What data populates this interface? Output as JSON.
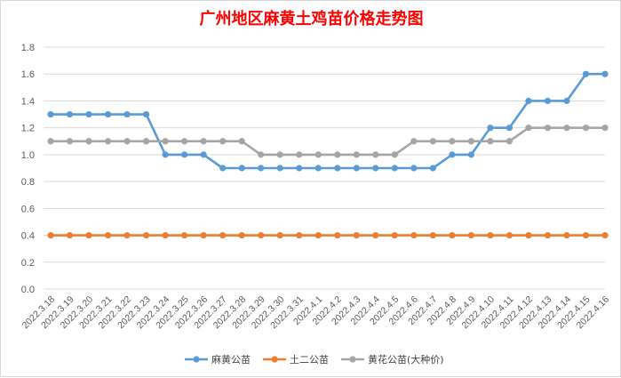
{
  "chart_data": {
    "type": "line",
    "title": "广州地区麻黄土鸡苗价格走势图",
    "xlabel": "",
    "ylabel": "",
    "ylim": [
      0,
      1.8
    ],
    "ytick_step": 0.2,
    "grid": true,
    "legend_position": "bottom",
    "categories": [
      "2022.3.18",
      "2022.3.19",
      "2022.3.20",
      "2022.3.21",
      "2022.3.22",
      "2022.3.23",
      "2022.3.24",
      "2022.3.25",
      "2022.3.26",
      "2022.3.27",
      "2022.3.28",
      "2022.3.29",
      "2022.3.30",
      "2022.3.31",
      "2022.4.1",
      "2022.4.2",
      "2022.4.3",
      "2022.4.4",
      "2022.4.5",
      "2022.4.6",
      "2022.4.7",
      "2022.4.8",
      "2022.4.9",
      "2022.4.10",
      "2022.4.11",
      "2022.4.12",
      "2022.4.13",
      "2022.4.14",
      "2022.4.15",
      "2022.4.16"
    ],
    "series": [
      {
        "name": "麻黄公苗",
        "color": "#5b9bd5",
        "values": [
          1.3,
          1.3,
          1.3,
          1.3,
          1.3,
          1.3,
          1.0,
          1.0,
          1.0,
          0.9,
          0.9,
          0.9,
          0.9,
          0.9,
          0.9,
          0.9,
          0.9,
          0.9,
          0.9,
          0.9,
          0.9,
          1.0,
          1.0,
          1.2,
          1.2,
          1.4,
          1.4,
          1.4,
          1.6,
          1.6
        ]
      },
      {
        "name": "土二公苗",
        "color": "#ed7d31",
        "values": [
          0.4,
          0.4,
          0.4,
          0.4,
          0.4,
          0.4,
          0.4,
          0.4,
          0.4,
          0.4,
          0.4,
          0.4,
          0.4,
          0.4,
          0.4,
          0.4,
          0.4,
          0.4,
          0.4,
          0.4,
          0.4,
          0.4,
          0.4,
          0.4,
          0.4,
          0.4,
          0.4,
          0.4,
          0.4,
          0.4
        ]
      },
      {
        "name": "黄花公苗(大种价)",
        "color": "#a5a5a5",
        "values": [
          1.1,
          1.1,
          1.1,
          1.1,
          1.1,
          1.1,
          1.1,
          1.1,
          1.1,
          1.1,
          1.1,
          1.0,
          1.0,
          1.0,
          1.0,
          1.0,
          1.0,
          1.0,
          1.0,
          1.1,
          1.1,
          1.1,
          1.1,
          1.1,
          1.1,
          1.2,
          1.2,
          1.2,
          1.2,
          1.2
        ]
      }
    ]
  }
}
